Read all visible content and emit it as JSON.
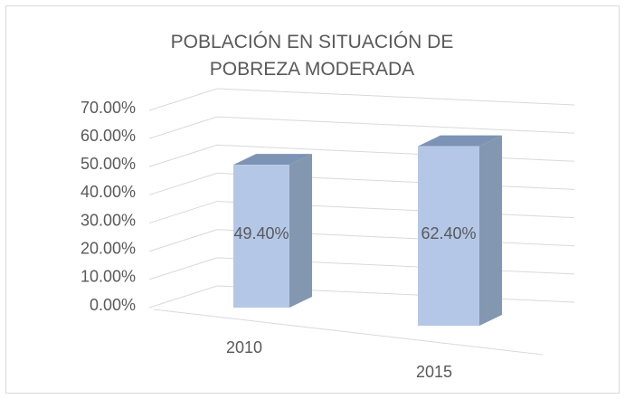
{
  "chart_data": {
    "type": "bar3d",
    "title": "POBLACIÓN EN SITUACIÓN DE POBREZA MODERADA",
    "categories": [
      "2010",
      "2015"
    ],
    "values": [
      49.4,
      62.4
    ],
    "value_labels": [
      "49.40%",
      "62.40%"
    ],
    "color": "#b4c7e7",
    "ylim": [
      0,
      70
    ],
    "yticks": [
      {
        "value": 0,
        "label": "0.00%"
      },
      {
        "value": 10,
        "label": "10.00%"
      },
      {
        "value": 20,
        "label": "20.00%"
      },
      {
        "value": 30,
        "label": "30.00%"
      },
      {
        "value": 40,
        "label": "40.00%"
      },
      {
        "value": 50,
        "label": "50.00%"
      },
      {
        "value": 60,
        "label": "60.00%"
      },
      {
        "value": 70,
        "label": "70.00%"
      }
    ],
    "grid": true
  }
}
